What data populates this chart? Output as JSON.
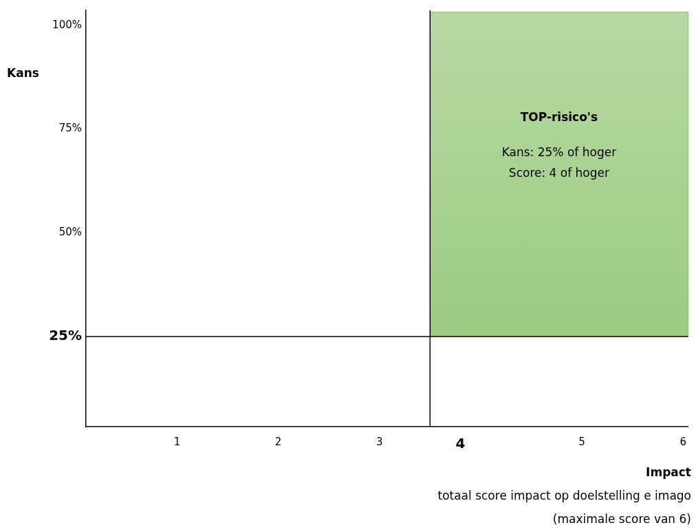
{
  "chart_data": {
    "type": "scatter",
    "ylabel": "Kans",
    "xlabel": "Impact",
    "xlim": [
      0.1,
      6.05
    ],
    "ylim": [
      3.3,
      103.6
    ],
    "xticks": [
      1,
      2,
      3,
      {
        "value": 3.5,
        "label": null
      },
      {
        "value": 3.8,
        "label": "4"
      },
      5,
      6
    ],
    "yticks": [
      {
        "value": 25,
        "label": "25%"
      },
      {
        "value": 50,
        "label": "50%"
      },
      {
        "value": 75,
        "label": "75%"
      },
      {
        "value": 100,
        "label": "100%"
      }
    ],
    "ref_lines": [
      {
        "axis": "x",
        "value": 3.5,
        "color": "#000000"
      },
      {
        "axis": "y",
        "value": 25,
        "color": "#000000"
      }
    ],
    "annotations": [
      "TOP-risico's",
      "Kans: 25% of hoger",
      "Score: 4 of hoger",
      "totaal score impact op doelstelling e imago",
      "(maximale score van 6)"
    ]
  }
}
